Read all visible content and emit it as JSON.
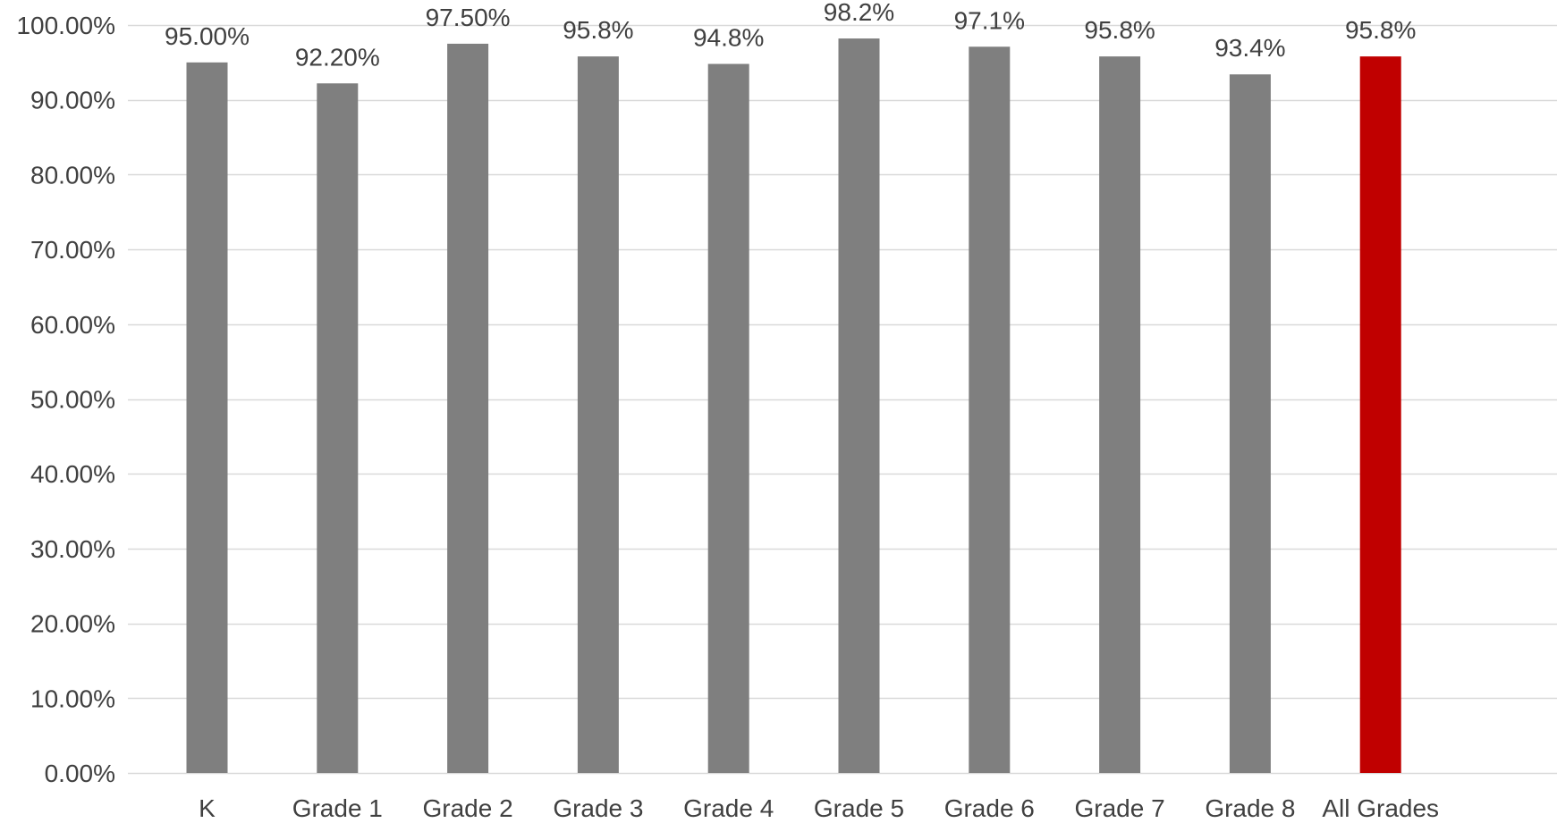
{
  "chart_data": {
    "type": "bar",
    "categories": [
      "K",
      "Grade 1",
      "Grade 2",
      "Grade 3",
      "Grade 4",
      "Grade 5",
      "Grade 6",
      "Grade 7",
      "Grade 8",
      "All Grades"
    ],
    "values": [
      95.0,
      92.2,
      97.5,
      95.8,
      94.8,
      98.2,
      97.1,
      95.8,
      93.4,
      95.8
    ],
    "data_labels": [
      "95.00%",
      "92.20%",
      "97.50%",
      "95.8%",
      "94.8%",
      "98.2%",
      "97.1%",
      "95.8%",
      "93.4%",
      "95.8%"
    ],
    "title": "",
    "xlabel": "",
    "ylabel": "",
    "ylim": [
      0,
      100
    ],
    "yticks": [
      0,
      10,
      20,
      30,
      40,
      50,
      60,
      70,
      80,
      90,
      100
    ],
    "ytick_labels": [
      "0.00%",
      "10.00%",
      "20.00%",
      "30.00%",
      "40.00%",
      "50.00%",
      "60.00%",
      "70.00%",
      "80.00%",
      "90.00%",
      "100.00%"
    ],
    "grid": true,
    "legend": "none",
    "colors": {
      "bar": "#7f7f7f",
      "highlight": "#c00000",
      "grid": "#d9d9d9",
      "text": "#404040"
    },
    "highlight_category": "All Grades"
  }
}
